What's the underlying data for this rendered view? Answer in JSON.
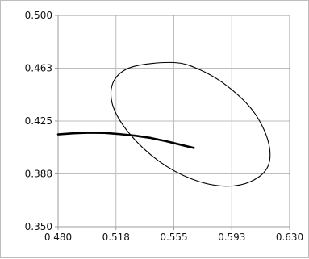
{
  "chart_data": {
    "type": "line",
    "title": "",
    "xlabel": "",
    "ylabel": "",
    "xlim": [
      0.48,
      0.63
    ],
    "ylim": [
      0.35,
      0.5
    ],
    "grid": true,
    "x_ticks": [
      0.48,
      0.5175,
      0.555,
      0.5925,
      0.63
    ],
    "y_ticks": [
      0.35,
      0.3875,
      0.425,
      0.4625,
      0.5
    ],
    "x_tick_labels": [
      "0.480",
      "0.518",
      "0.555",
      "0.593",
      "0.630"
    ],
    "y_tick_labels": [
      "0.350",
      "0.388",
      "0.425",
      "0.463",
      "0.500"
    ],
    "series": [
      {
        "values": [
          {
            "x": 0.48,
            "y": 0.4155
          },
          {
            "x": 0.49,
            "y": 0.4163
          },
          {
            "x": 0.5,
            "y": 0.4167
          },
          {
            "x": 0.51,
            "y": 0.4166
          },
          {
            "x": 0.52,
            "y": 0.4157
          },
          {
            "x": 0.53,
            "y": 0.4146
          },
          {
            "x": 0.54,
            "y": 0.413
          },
          {
            "x": 0.55,
            "y": 0.4107
          },
          {
            "x": 0.56,
            "y": 0.408
          },
          {
            "x": 0.568,
            "y": 0.4059
          }
        ]
      },
      {
        "values": [
          {
            "x": 0.555,
            "y": 0.4665
          },
          {
            "x": 0.5722,
            "y": 0.4612
          },
          {
            "x": 0.5896,
            "y": 0.4498
          },
          {
            "x": 0.6064,
            "y": 0.432
          },
          {
            "x": 0.616,
            "y": 0.411
          },
          {
            "x": 0.616,
            "y": 0.393
          },
          {
            "x": 0.605,
            "y": 0.3822
          },
          {
            "x": 0.588,
            "y": 0.3788
          },
          {
            "x": 0.567,
            "y": 0.3837
          },
          {
            "x": 0.545,
            "y": 0.3968
          },
          {
            "x": 0.526,
            "y": 0.4164
          },
          {
            "x": 0.5153,
            "y": 0.4365
          },
          {
            "x": 0.516,
            "y": 0.4532
          },
          {
            "x": 0.528,
            "y": 0.4634
          },
          {
            "x": 0.555,
            "y": 0.4665
          }
        ]
      }
    ],
    "colors": {
      "curve": "#000000",
      "ellipse": "#000000",
      "grid": "#bdbdbd",
      "axis": "#9e9e9e"
    }
  }
}
